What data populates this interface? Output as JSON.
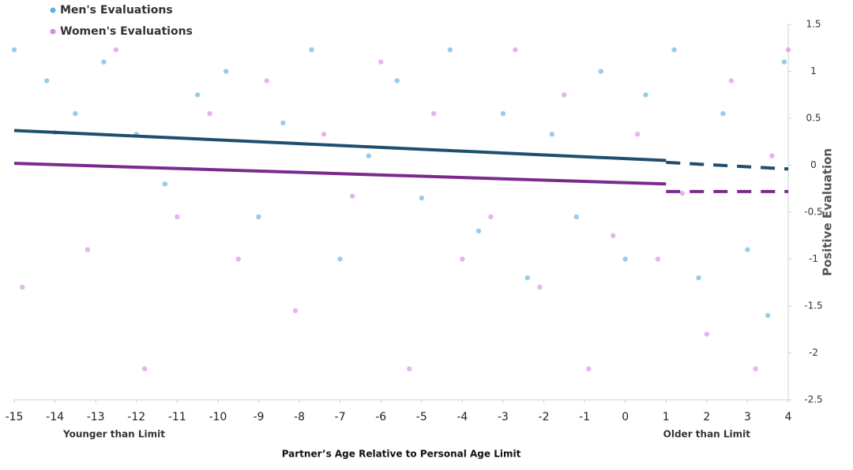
{
  "chart_data": {
    "type": "scatter",
    "x_label": "Partner’s Age Relative to Personal Age Limit",
    "y_label": "Positive Evaluation",
    "annotations": [
      "Younger than Limit",
      "Older than Limit"
    ],
    "xlim": [
      -15,
      4
    ],
    "xticks": [
      -15,
      -14,
      -13,
      -12,
      -11,
      -10,
      -9,
      -8,
      -7,
      -6,
      -5,
      -4,
      -3,
      -2,
      -1,
      0,
      1,
      2,
      3,
      4
    ],
    "ylim": [
      -2.5,
      1.5
    ],
    "yticks": [
      1.5,
      1,
      0.5,
      0,
      -0.5,
      -1,
      -1.5,
      -2,
      -2.5
    ],
    "legend": "top-left",
    "series": [
      {
        "name": "Men's Evaluations",
        "color": "#5db4df",
        "x": [
          -15,
          -14.2,
          -13.5,
          -12.8,
          -12,
          -11.3,
          -10.5,
          -9.8,
          -9,
          -8.4,
          -7.7,
          -7,
          -6.3,
          -5.6,
          -5,
          -4.3,
          -3.6,
          -3,
          -2.4,
          -1.8,
          -1.2,
          -0.6,
          0,
          0.5,
          1.2,
          1.8,
          2.4,
          3,
          3.5,
          3.9
        ],
        "values": [
          1.23,
          0.9,
          0.55,
          1.1,
          0.33,
          -0.2,
          0.75,
          1.0,
          -0.55,
          0.45,
          1.23,
          -1.0,
          0.1,
          0.9,
          -0.35,
          1.23,
          -0.7,
          0.55,
          -1.2,
          0.33,
          -0.55,
          1.0,
          -1.0,
          0.75,
          1.23,
          -1.2,
          0.55,
          -0.9,
          -1.6,
          1.1
        ]
      },
      {
        "name": "Women's Evaluations",
        "color": "#d58ee3",
        "x": [
          -14.8,
          -14,
          -13.2,
          -12.5,
          -11.8,
          -11,
          -10.2,
          -9.5,
          -8.8,
          -8.1,
          -7.4,
          -6.7,
          -6,
          -5.3,
          -4.7,
          -4,
          -3.3,
          -2.7,
          -2.1,
          -1.5,
          -0.9,
          -0.3,
          0.3,
          0.8,
          1.4,
          2,
          2.6,
          3.2,
          3.6,
          4
        ],
        "values": [
          -1.3,
          0.35,
          -0.9,
          1.23,
          -2.17,
          -0.55,
          0.55,
          -1.0,
          0.9,
          -1.55,
          0.33,
          -0.33,
          1.1,
          -2.17,
          0.55,
          -1.0,
          -0.55,
          1.23,
          -1.3,
          0.75,
          -2.17,
          -0.75,
          0.33,
          -1.0,
          -0.3,
          -1.8,
          0.9,
          -2.17,
          0.1,
          1.23
        ]
      }
    ],
    "lines": [
      {
        "color": "#1f4e6e",
        "dashed": false,
        "x": [
          -15,
          1
        ],
        "values": [
          0.37,
          0.05
        ]
      },
      {
        "color": "#1f4e6e",
        "dashed": true,
        "x": [
          1,
          4
        ],
        "values": [
          0.03,
          -0.04
        ]
      },
      {
        "color": "#7b2a8c",
        "dashed": false,
        "x": [
          -15,
          1
        ],
        "values": [
          0.02,
          -0.2
        ]
      },
      {
        "color": "#7b2a8c",
        "dashed": true,
        "x": [
          1,
          4
        ],
        "values": [
          -0.28,
          -0.28
        ]
      }
    ]
  }
}
